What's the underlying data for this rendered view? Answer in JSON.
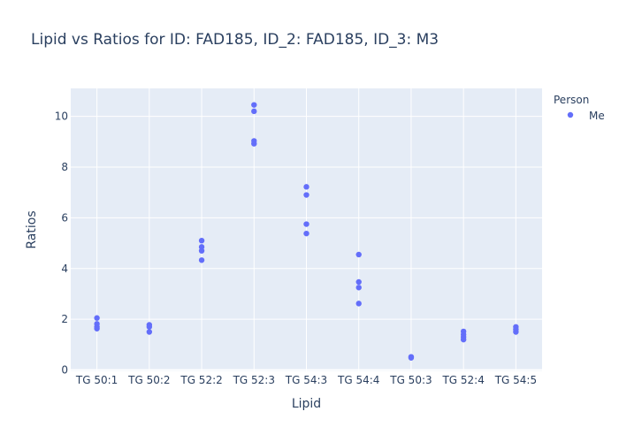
{
  "chart_data": {
    "type": "scatter",
    "title": "Lipid vs Ratios for ID: FAD185, ID_2: FAD185, ID_3: M3",
    "xlabel": "Lipid",
    "ylabel": "Ratios",
    "categories": [
      "TG 50:1",
      "TG 50:2",
      "TG 52:2",
      "TG 52:3",
      "TG 54:3",
      "TG 54:4",
      "TG 50:3",
      "TG 52:4",
      "TG 54:5"
    ],
    "ylim": [
      -0.05,
      11.1
    ],
    "yticks": [
      0,
      2,
      4,
      6,
      8,
      10
    ],
    "grid": true,
    "legend": {
      "title": "Person",
      "placement": "top-right"
    },
    "series": [
      {
        "name": "Me",
        "color": "#636efa",
        "points": [
          [
            "TG 50:1",
            2.05
          ],
          [
            "TG 50:1",
            1.82
          ],
          [
            "TG 50:1",
            1.7
          ],
          [
            "TG 50:1",
            1.63
          ],
          [
            "TG 50:2",
            1.78
          ],
          [
            "TG 50:2",
            1.7
          ],
          [
            "TG 50:2",
            1.5
          ],
          [
            "TG 52:2",
            5.1
          ],
          [
            "TG 52:2",
            4.85
          ],
          [
            "TG 52:2",
            4.7
          ],
          [
            "TG 52:2",
            4.33
          ],
          [
            "TG 52:3",
            10.45
          ],
          [
            "TG 52:3",
            10.2
          ],
          [
            "TG 52:3",
            9.03
          ],
          [
            "TG 52:3",
            8.92
          ],
          [
            "TG 54:3",
            7.22
          ],
          [
            "TG 54:3",
            6.9
          ],
          [
            "TG 54:3",
            5.75
          ],
          [
            "TG 54:3",
            5.38
          ],
          [
            "TG 54:4",
            4.55
          ],
          [
            "TG 54:4",
            3.47
          ],
          [
            "TG 54:4",
            3.25
          ],
          [
            "TG 54:4",
            2.62
          ],
          [
            "TG 50:3",
            0.52
          ],
          [
            "TG 50:3",
            0.48
          ],
          [
            "TG 52:4",
            1.52
          ],
          [
            "TG 52:4",
            1.4
          ],
          [
            "TG 52:4",
            1.3
          ],
          [
            "TG 52:4",
            1.2
          ],
          [
            "TG 54:5",
            1.7
          ],
          [
            "TG 54:5",
            1.6
          ],
          [
            "TG 54:5",
            1.5
          ]
        ]
      }
    ]
  }
}
